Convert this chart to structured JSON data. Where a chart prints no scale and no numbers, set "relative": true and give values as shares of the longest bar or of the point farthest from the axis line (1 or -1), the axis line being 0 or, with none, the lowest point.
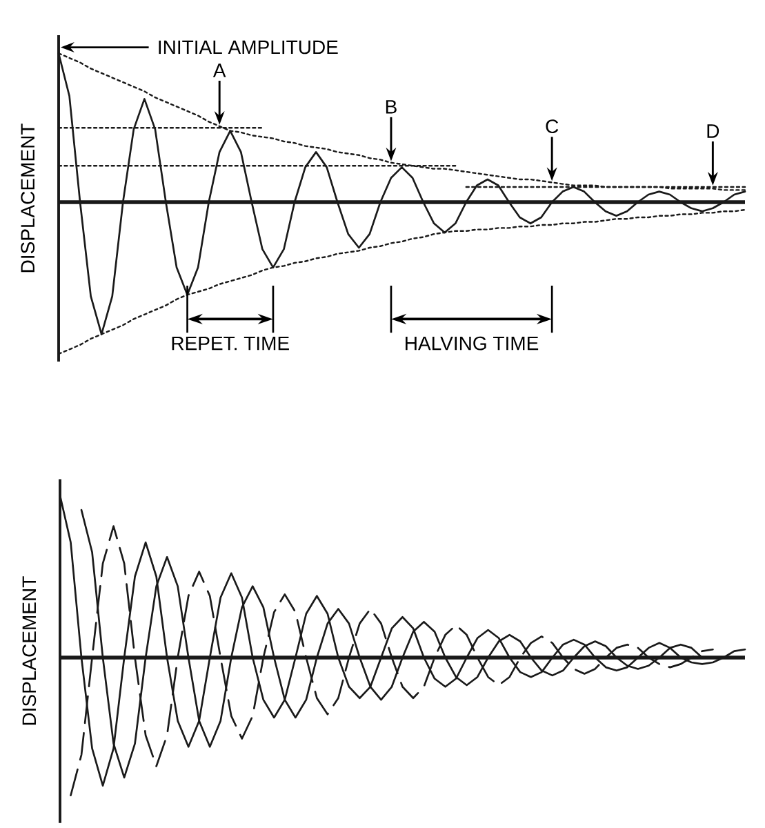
{
  "chart_data": [
    {
      "type": "line",
      "relative": true,
      "ylabel": "DISPLACEMENT",
      "categories": [
        null,
        null,
        null,
        null,
        null,
        null,
        null,
        null,
        null,
        null,
        null,
        null,
        null,
        null,
        null,
        null,
        null,
        null,
        null,
        null,
        null,
        null,
        null,
        null,
        null,
        null,
        null,
        null,
        null,
        null,
        null,
        null,
        null,
        null,
        null,
        null,
        null,
        null,
        null,
        null,
        null,
        null,
        null,
        null,
        null,
        null,
        null,
        null,
        null,
        null,
        null,
        null,
        null,
        null,
        null,
        null,
        null,
        null,
        null,
        null,
        null,
        null,
        null,
        null,
        null
      ],
      "series": [
        {
          "color": "#1a1a1a",
          "line_style": "solid",
          "values": [
            0.98,
            0.7,
            0,
            -0.62,
            -0.87,
            -0.62,
            0,
            0.48,
            0.68,
            0.48,
            0,
            -0.43,
            -0.61,
            -0.43,
            0,
            0.33,
            0.47,
            0.33,
            0,
            -0.31,
            -0.43,
            -0.31,
            0,
            0.23,
            0.33,
            0.23,
            0,
            -0.21,
            -0.3,
            -0.21,
            0,
            0.16,
            0.23,
            0.16,
            0,
            -0.14,
            -0.2,
            -0.14,
            0,
            0.11,
            0.15,
            0.11,
            0,
            -0.1,
            -0.14,
            -0.1,
            0,
            0.07,
            0.1,
            0.07,
            0,
            -0.06,
            -0.09,
            -0.06,
            0,
            0.05,
            0.07,
            0.05,
            0,
            -0.04,
            -0.06,
            -0.04,
            0,
            0.05,
            0.07
          ]
        },
        {
          "color": "#1a1a1a",
          "line_style": "dotted",
          "values": [
            0.98,
            0.95,
            0.92,
            0.88,
            0.85,
            0.82,
            0.79,
            0.76,
            0.73,
            0.69,
            0.66,
            0.63,
            0.6,
            0.57,
            0.53,
            0.5,
            0.47,
            0.46,
            0.44,
            0.43,
            0.42,
            0.4,
            0.39,
            0.37,
            0.36,
            0.35,
            0.33,
            0.32,
            0.31,
            0.29,
            0.28,
            0.26,
            0.25,
            0.24,
            0.23,
            0.22,
            0.22,
            0.21,
            0.2,
            0.19,
            0.18,
            0.17,
            0.16,
            0.15,
            0.15,
            0.14,
            0.13,
            0.12,
            0.11,
            0.11,
            0.11,
            0.1,
            0.1,
            0.1,
            0.1,
            0.1,
            0.1,
            0.09,
            0.09,
            0.09,
            0.09,
            0.09,
            0.08,
            0.08,
            0.08
          ]
        },
        {
          "color": "#1a1a1a",
          "line_style": "dotted",
          "values": [
            -1,
            -0.97,
            -0.94,
            -0.9,
            -0.87,
            -0.84,
            -0.81,
            -0.77,
            -0.74,
            -0.71,
            -0.68,
            -0.64,
            -0.61,
            -0.59,
            -0.57,
            -0.54,
            -0.52,
            -0.5,
            -0.48,
            -0.45,
            -0.43,
            -0.42,
            -0.4,
            -0.39,
            -0.37,
            -0.36,
            -0.34,
            -0.33,
            -0.32,
            -0.3,
            -0.29,
            -0.27,
            -0.26,
            -0.24,
            -0.23,
            -0.21,
            -0.2,
            -0.19,
            -0.19,
            -0.18,
            -0.18,
            -0.17,
            -0.17,
            -0.16,
            -0.16,
            -0.15,
            -0.15,
            -0.14,
            -0.14,
            -0.13,
            -0.13,
            -0.12,
            -0.11,
            -0.11,
            -0.1,
            -0.1,
            -0.09,
            -0.09,
            -0.08,
            -0.08,
            -0.07,
            -0.07,
            -0.06,
            -0.06,
            -0.05
          ]
        },
        {
          "color": "#1a1a1a",
          "line_style": "dotted",
          "values": [
            0.49,
            0.49,
            0.49,
            0.49,
            0.49,
            0.49,
            0.49,
            0.49,
            0.49,
            0.49,
            0.49,
            0.49,
            0.49,
            0.49,
            0.49,
            0.49,
            0.49,
            0.49,
            0.49,
            0.49,
            null,
            null,
            null,
            null,
            null,
            null,
            null,
            null,
            null,
            null,
            null,
            null,
            null,
            null,
            null,
            null,
            null,
            null,
            null,
            null,
            null,
            null,
            null,
            null,
            null,
            null,
            null,
            null,
            null,
            null,
            null,
            null,
            null,
            null,
            null,
            null,
            null,
            null,
            null,
            null,
            null,
            null,
            null,
            null,
            null
          ]
        },
        {
          "color": "#1a1a1a",
          "line_style": "dotted",
          "values": [
            0.24,
            0.24,
            0.24,
            0.24,
            0.24,
            0.24,
            0.24,
            0.24,
            0.24,
            0.24,
            0.24,
            0.24,
            0.24,
            0.24,
            0.24,
            0.24,
            0.24,
            0.24,
            0.24,
            0.24,
            0.24,
            0.24,
            0.24,
            0.24,
            0.24,
            0.24,
            0.24,
            0.24,
            0.24,
            0.24,
            0.24,
            0.24,
            0.24,
            0.24,
            0.24,
            0.24,
            0.24,
            0.24,
            null,
            null,
            null,
            null,
            null,
            null,
            null,
            null,
            null,
            null,
            null,
            null,
            null,
            null,
            null,
            null,
            null,
            null,
            null,
            null,
            null,
            null,
            null,
            null,
            null,
            null,
            null
          ]
        },
        {
          "color": "#1a1a1a",
          "line_style": "dotted",
          "values": [
            null,
            null,
            null,
            null,
            null,
            null,
            null,
            null,
            null,
            null,
            null,
            null,
            null,
            null,
            null,
            null,
            null,
            null,
            null,
            null,
            null,
            null,
            null,
            null,
            null,
            null,
            null,
            null,
            null,
            null,
            null,
            null,
            null,
            null,
            null,
            null,
            null,
            null,
            0.1,
            0.1,
            0.1,
            0.1,
            0.1,
            0.1,
            0.1,
            0.1,
            0.1,
            0.1,
            0.1,
            0.1,
            0.1,
            0.1,
            0.1,
            0.1,
            0.1,
            0.1,
            0.1,
            0.1,
            0.1,
            0.1,
            0.1,
            0.1,
            0.1,
            0.1,
            0.1
          ]
        }
      ],
      "annotations": [
        "INITIAL AMPLITUDE",
        "A",
        "B",
        "C",
        "D",
        "REPET. TIME",
        "HALVING TIME"
      ]
    },
    {
      "type": "line",
      "relative": true,
      "ylabel": "DISPLACEMENT",
      "categories": [
        null,
        null,
        null,
        null,
        null,
        null,
        null,
        null,
        null,
        null,
        null,
        null,
        null,
        null,
        null,
        null,
        null,
        null,
        null,
        null,
        null,
        null,
        null,
        null,
        null,
        null,
        null,
        null,
        null,
        null,
        null,
        null,
        null,
        null,
        null,
        null,
        null,
        null,
        null,
        null,
        null,
        null,
        null,
        null,
        null,
        null,
        null,
        null,
        null,
        null,
        null,
        null,
        null,
        null,
        null,
        null,
        null,
        null,
        null,
        null,
        null,
        null,
        null,
        null,
        null
      ],
      "series": [
        {
          "color": "#1a1a1a",
          "line_style": "solid",
          "values": [
            1,
            0.71,
            0,
            -0.56,
            -0.79,
            -0.56,
            0,
            0.5,
            0.71,
            0.5,
            0,
            -0.39,
            -0.55,
            -0.39,
            0,
            0.37,
            0.52,
            0.37,
            0,
            -0.26,
            -0.37,
            -0.26,
            0,
            0.27,
            0.38,
            0.27,
            0,
            -0.18,
            -0.25,
            -0.18,
            0,
            0.18,
            0.25,
            0.18,
            0,
            -0.13,
            -0.18,
            -0.13,
            0,
            0.12,
            0.17,
            0.12,
            0,
            -0.09,
            -0.12,
            -0.09,
            0,
            0.08,
            0.11,
            0.08,
            0,
            -0.06,
            -0.08,
            -0.06,
            0,
            0.06,
            0.09,
            0.06,
            0,
            -0.03,
            -0.04,
            -0.03,
            0,
            0.04,
            0.05
          ]
        },
        {
          "color": "#1a1a1a",
          "line_style": "solid",
          "values": [
            null,
            null,
            0.91,
            0.65,
            0,
            -0.53,
            -0.74,
            -0.53,
            0,
            0.44,
            0.62,
            0.44,
            0,
            -0.39,
            -0.55,
            -0.39,
            0,
            0.31,
            0.44,
            0.31,
            0,
            -0.26,
            -0.37,
            -0.26,
            0,
            0.21,
            0.3,
            0.21,
            0,
            -0.18,
            -0.26,
            -0.18,
            0,
            0.16,
            0.22,
            0.16,
            0,
            -0.12,
            -0.17,
            -0.12,
            0,
            0.1,
            0.14,
            0.1,
            0,
            -0.08,
            -0.11,
            -0.08,
            0,
            0.07,
            0.1,
            0.07,
            0,
            -0.05,
            -0.07,
            -0.05,
            0,
            0.06,
            0.08,
            0.06,
            0,
            null,
            null,
            null,
            null
          ]
        },
        {
          "color": "#1a1a1a",
          "line_style": "dashed",
          "values": [
            null,
            -0.85,
            -0.6,
            0,
            0.58,
            0.81,
            0.58,
            0,
            -0.48,
            -0.67,
            -0.48,
            0,
            0.38,
            0.53,
            0.38,
            0,
            -0.36,
            -0.5,
            -0.36,
            0,
            0.28,
            0.39,
            0.28,
            0,
            -0.25,
            -0.35,
            -0.25,
            0,
            0.21,
            0.3,
            0.21,
            0,
            -0.18,
            -0.25,
            -0.18,
            0,
            0.14,
            0.2,
            0.14,
            0,
            -0.12,
            -0.17,
            -0.12,
            0,
            0.09,
            0.13,
            0.09,
            0,
            -0.07,
            -0.1,
            -0.07,
            0,
            0.06,
            0.08,
            0.06,
            0,
            -0.04,
            -0.06,
            -0.04,
            0,
            0.04,
            0.05,
            null,
            null,
            null
          ]
        }
      ]
    }
  ]
}
